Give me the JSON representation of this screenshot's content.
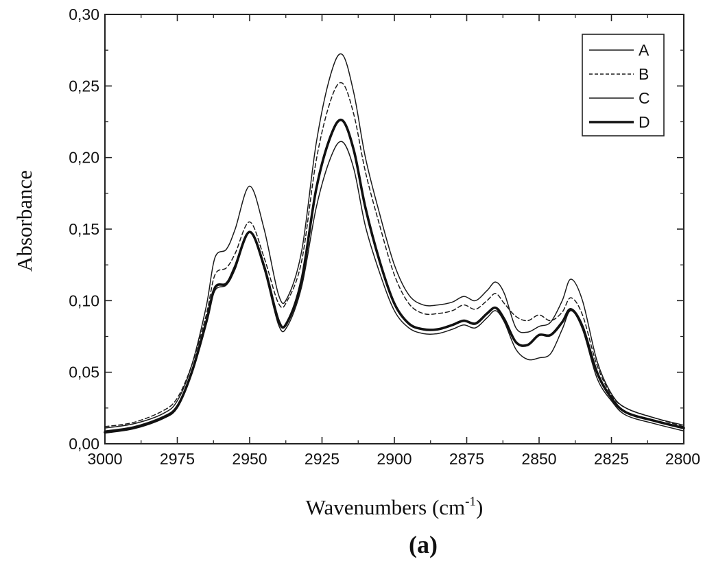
{
  "chart_data": {
    "type": "line",
    "title": "",
    "caption": "(a)",
    "xlabel": "Wavenumbers (cm",
    "xlabel_sup": "-1",
    "xlabel_end": ")",
    "ylabel": "Absorbance",
    "xlim": [
      3000,
      2800
    ],
    "ylim": [
      0.0,
      0.3
    ],
    "x_reversed": true,
    "grid": false,
    "legend_placement": "top-right",
    "x_ticks": [
      3000,
      2975,
      2950,
      2925,
      2900,
      2875,
      2850,
      2825,
      2800
    ],
    "x_tick_labels": [
      "3000",
      "2975",
      "2950",
      "2925",
      "2900",
      "2875",
      "2850",
      "2825",
      "2800"
    ],
    "y_ticks": [
      0.0,
      0.05,
      0.1,
      0.15,
      0.2,
      0.25,
      0.3
    ],
    "y_tick_labels": [
      "0,00",
      "0,05",
      "0,10",
      "0,15",
      "0,20",
      "0,25",
      "0,30"
    ],
    "x": [
      3000,
      2990,
      2980,
      2975,
      2970,
      2965,
      2962,
      2958,
      2955,
      2950,
      2945,
      2940,
      2937,
      2932,
      2927,
      2922,
      2918,
      2914,
      2910,
      2905,
      2900,
      2895,
      2890,
      2885,
      2880,
      2876,
      2872,
      2868,
      2865,
      2862,
      2858,
      2854,
      2850,
      2846,
      2842,
      2839,
      2835,
      2830,
      2825,
      2820,
      2810,
      2800
    ],
    "series": [
      {
        "name": "A",
        "style": "solid-thin",
        "color": "#1a1a1a",
        "values": [
          0.011,
          0.014,
          0.021,
          0.03,
          0.055,
          0.096,
          0.13,
          0.136,
          0.15,
          0.18,
          0.15,
          0.104,
          0.102,
          0.135,
          0.21,
          0.258,
          0.272,
          0.245,
          0.2,
          0.16,
          0.125,
          0.104,
          0.097,
          0.097,
          0.099,
          0.103,
          0.1,
          0.107,
          0.113,
          0.105,
          0.081,
          0.078,
          0.082,
          0.085,
          0.1,
          0.115,
          0.1,
          0.058,
          0.035,
          0.025,
          0.018,
          0.013
        ]
      },
      {
        "name": "B",
        "style": "dashed",
        "color": "#1a1a1a",
        "values": [
          0.012,
          0.015,
          0.023,
          0.032,
          0.055,
          0.09,
          0.118,
          0.123,
          0.133,
          0.155,
          0.13,
          0.098,
          0.1,
          0.128,
          0.198,
          0.24,
          0.252,
          0.23,
          0.19,
          0.152,
          0.118,
          0.098,
          0.091,
          0.091,
          0.093,
          0.097,
          0.094,
          0.1,
          0.105,
          0.098,
          0.089,
          0.086,
          0.09,
          0.086,
          0.092,
          0.102,
          0.09,
          0.055,
          0.034,
          0.025,
          0.018,
          0.012
        ]
      },
      {
        "name": "C",
        "style": "solid-thin",
        "color": "#1a1a1a",
        "values": [
          0.009,
          0.012,
          0.019,
          0.027,
          0.05,
          0.085,
          0.107,
          0.111,
          0.122,
          0.148,
          0.122,
          0.083,
          0.082,
          0.11,
          0.165,
          0.2,
          0.211,
          0.192,
          0.152,
          0.119,
          0.093,
          0.081,
          0.077,
          0.077,
          0.08,
          0.083,
          0.081,
          0.088,
          0.093,
          0.085,
          0.066,
          0.059,
          0.06,
          0.063,
          0.08,
          0.093,
          0.08,
          0.046,
          0.03,
          0.02,
          0.014,
          0.009
        ]
      },
      {
        "name": "D",
        "style": "solid-thick",
        "color": "#111111",
        "values": [
          0.008,
          0.011,
          0.018,
          0.026,
          0.05,
          0.085,
          0.109,
          0.112,
          0.124,
          0.148,
          0.124,
          0.086,
          0.085,
          0.115,
          0.178,
          0.215,
          0.226,
          0.205,
          0.165,
          0.127,
          0.098,
          0.084,
          0.08,
          0.08,
          0.083,
          0.086,
          0.084,
          0.091,
          0.095,
          0.087,
          0.071,
          0.069,
          0.076,
          0.076,
          0.085,
          0.094,
          0.082,
          0.05,
          0.032,
          0.022,
          0.016,
          0.011
        ]
      }
    ]
  }
}
